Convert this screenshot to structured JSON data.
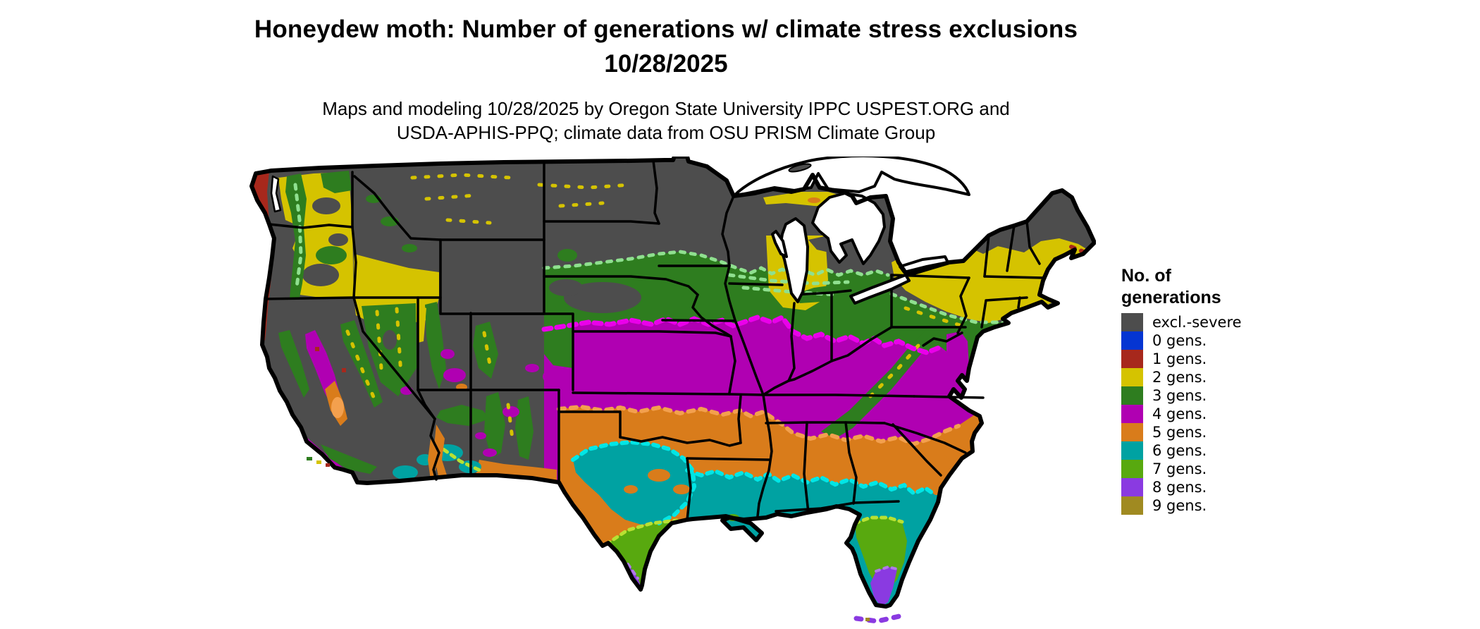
{
  "header": {
    "title_line1": "Honeydew moth: Number of generations w/ climate stress exclusions",
    "title_line2": "10/28/2025",
    "subtitle_line1": "Maps and modeling 10/28/2025 by Oregon State University IPPC USPEST.ORG and",
    "subtitle_line2": "USDA-APHIS-PPQ; climate data from OSU PRISM Climate Group"
  },
  "legend": {
    "title_line1": "No. of",
    "title_line2": "generations",
    "items": [
      {
        "label": "excl.-severe",
        "color": "#4d4d4d"
      },
      {
        "label": "0 gens.",
        "color": "#0535d2"
      },
      {
        "label": "1 gens.",
        "color": "#a7281c"
      },
      {
        "label": "2 gens.",
        "color": "#d5c300"
      },
      {
        "label": "3 gens.",
        "color": "#2e7d1f"
      },
      {
        "label": "4 gens.",
        "color": "#b000b2"
      },
      {
        "label": "5 gens.",
        "color": "#d97c1b"
      },
      {
        "label": "6 gens.",
        "color": "#00a2a2"
      },
      {
        "label": "7 gens.",
        "color": "#58a90f"
      },
      {
        "label": "8 gens.",
        "color": "#8a3ae1"
      },
      {
        "label": "9 gens.",
        "color": "#a08a21"
      }
    ]
  },
  "map": {
    "region": "Continental United States",
    "kind": "raster choropleth of insect generations per year with state boundaries",
    "bands_north_to_south": [
      "excl.-severe",
      "2 gens.",
      "3 gens.",
      "4 gens.",
      "5 gens.",
      "6 gens.",
      "7 gens.",
      "8 gens."
    ]
  }
}
